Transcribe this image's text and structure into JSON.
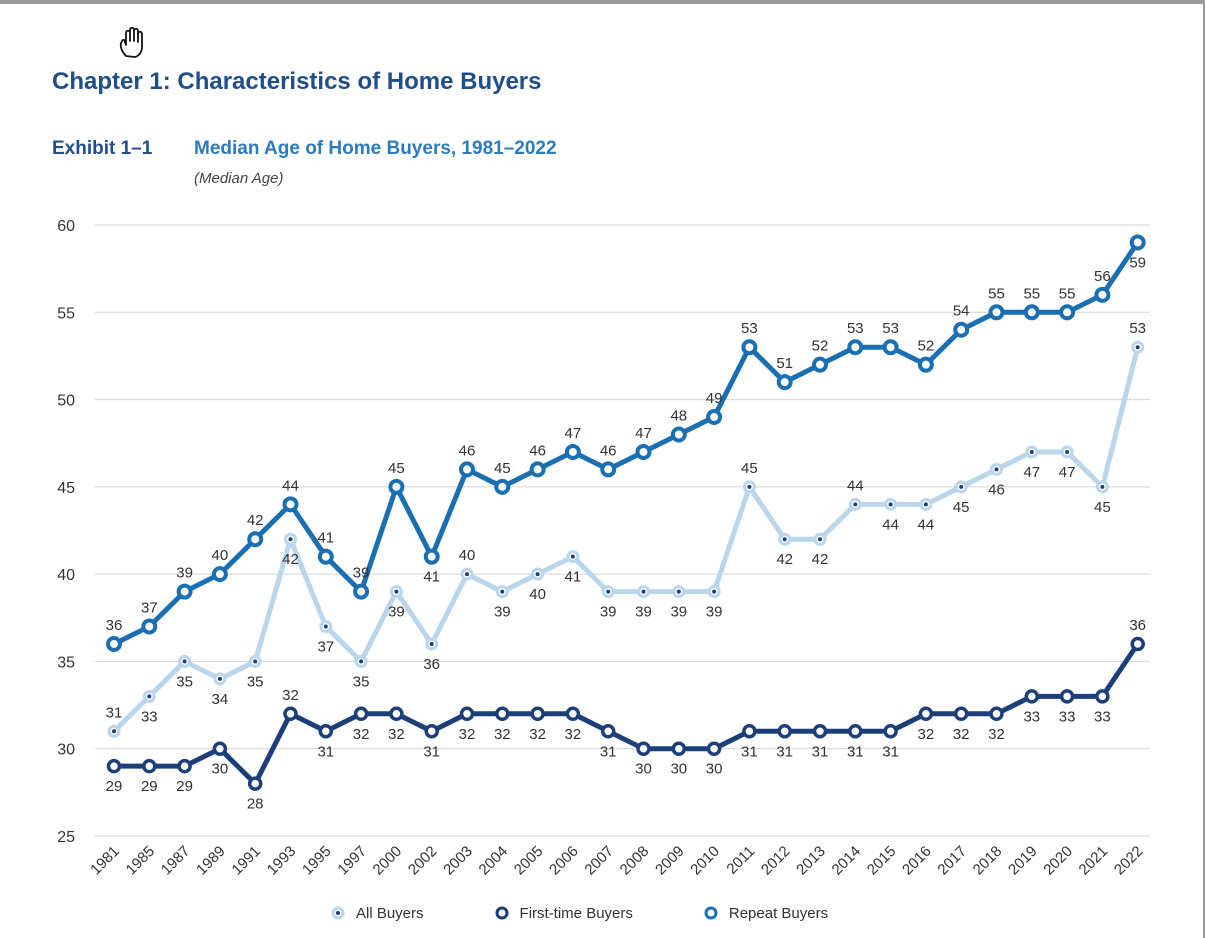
{
  "header": {
    "chapter_title": "Chapter 1:  Characteristics of Home Buyers",
    "exhibit_label": "Exhibit 1–1"
  },
  "icons": {
    "cursor": "hand-cursor-icon"
  },
  "colors": {
    "all_buyers": "#b9d6ec",
    "first_time_buyers": "#1c3f7a",
    "repeat_buyers": "#1a6fb3",
    "grid": "#d4d4d4",
    "title_navy": "#1f4e8a",
    "title_blue": "#2c7bbf"
  },
  "chart_data": {
    "type": "line",
    "title": "Median Age of Home Buyers, 1981–2022",
    "subtitle": "(Median Age)",
    "categories": [
      "1981",
      "1985",
      "1987",
      "1989",
      "1991",
      "1993",
      "1995",
      "1997",
      "2000",
      "2002",
      "2003",
      "2004",
      "2005",
      "2006",
      "2007",
      "2008",
      "2009",
      "2010",
      "2011",
      "2012",
      "2013",
      "2014",
      "2015",
      "2016",
      "2017",
      "2018",
      "2019",
      "2020",
      "2021",
      "2022"
    ],
    "ylim": [
      25,
      60
    ],
    "yticks": [
      25,
      30,
      35,
      40,
      45,
      50,
      55,
      60
    ],
    "grid": true,
    "legend": "bottom",
    "series": [
      {
        "name": "All Buyers",
        "values": [
          31,
          33,
          35,
          34,
          35,
          42,
          37,
          35,
          39,
          36,
          40,
          39,
          40,
          41,
          39,
          39,
          39,
          39,
          45,
          42,
          42,
          44,
          44,
          44,
          45,
          46,
          47,
          47,
          45,
          53
        ],
        "label_pos": [
          "a",
          "b",
          "b",
          "b",
          "b",
          "b",
          "b",
          "b",
          "b",
          "b",
          "a",
          "b",
          "b",
          "b",
          "b",
          "b",
          "b",
          "b",
          "a",
          "b",
          "b",
          "a",
          "b",
          "b",
          "b",
          "b",
          "b",
          "b",
          "b",
          "a"
        ]
      },
      {
        "name": "First-time Buyers",
        "values": [
          29,
          29,
          29,
          30,
          28,
          32,
          31,
          32,
          32,
          31,
          32,
          32,
          32,
          32,
          31,
          30,
          30,
          30,
          31,
          31,
          31,
          31,
          31,
          32,
          32,
          32,
          33,
          33,
          33,
          36
        ],
        "label_pos": [
          "b",
          "b",
          "b",
          "b",
          "b",
          "a",
          "b",
          "b",
          "b",
          "b",
          "b",
          "b",
          "b",
          "b",
          "b",
          "b",
          "b",
          "b",
          "b",
          "b",
          "b",
          "b",
          "b",
          "b",
          "b",
          "b",
          "b",
          "b",
          "b",
          "a"
        ]
      },
      {
        "name": "Repeat Buyers",
        "values": [
          36,
          37,
          39,
          40,
          42,
          44,
          41,
          39,
          45,
          41,
          46,
          45,
          46,
          47,
          46,
          47,
          48,
          49,
          53,
          51,
          52,
          53,
          53,
          52,
          54,
          55,
          55,
          55,
          56,
          59
        ],
        "label_pos": [
          "a",
          "a",
          "a",
          "a",
          "a",
          "a",
          "a",
          "a",
          "a",
          "b",
          "a",
          "a",
          "a",
          "a",
          "a",
          "a",
          "a",
          "a",
          "a",
          "a",
          "a",
          "a",
          "a",
          "a",
          "a",
          "a",
          "a",
          "a",
          "a",
          "b"
        ]
      }
    ]
  }
}
